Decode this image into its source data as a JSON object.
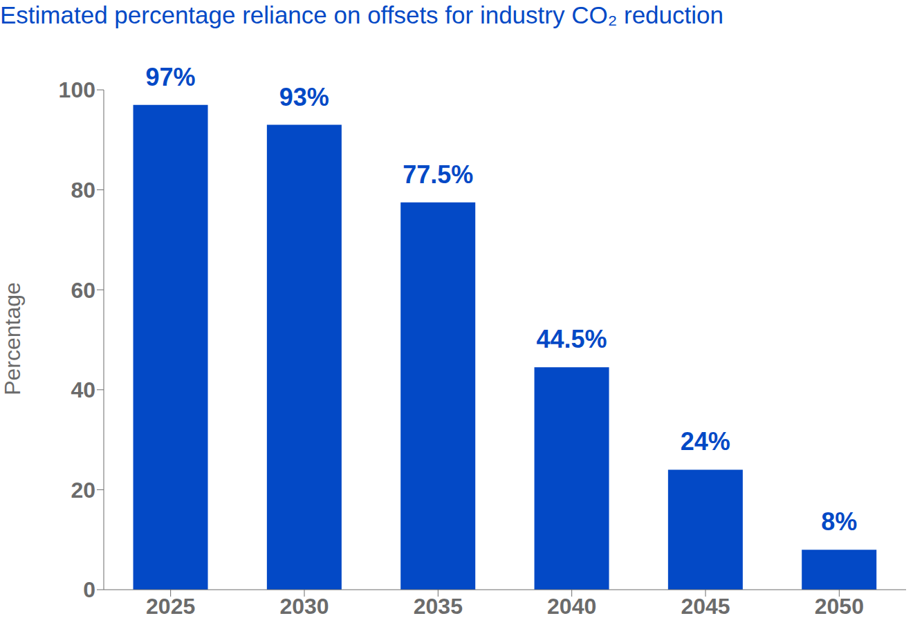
{
  "chart_data": {
    "type": "bar",
    "title": "Estimated percentage reliance on offsets for industry CO₂ reduction",
    "y_label": "Percentage",
    "categories": [
      "2025",
      "2030",
      "2035",
      "2040",
      "2045",
      "2050"
    ],
    "values": [
      97,
      93,
      77.5,
      44.5,
      24,
      8
    ],
    "value_labels": [
      "97%",
      "93%",
      "77.5%",
      "44.5%",
      "24%",
      "8%"
    ],
    "color": "#0349c6",
    "ylim": [
      0,
      100
    ],
    "yticks": [
      0,
      20,
      40,
      60,
      80,
      100
    ],
    "grid": false,
    "data_labels": true
  }
}
